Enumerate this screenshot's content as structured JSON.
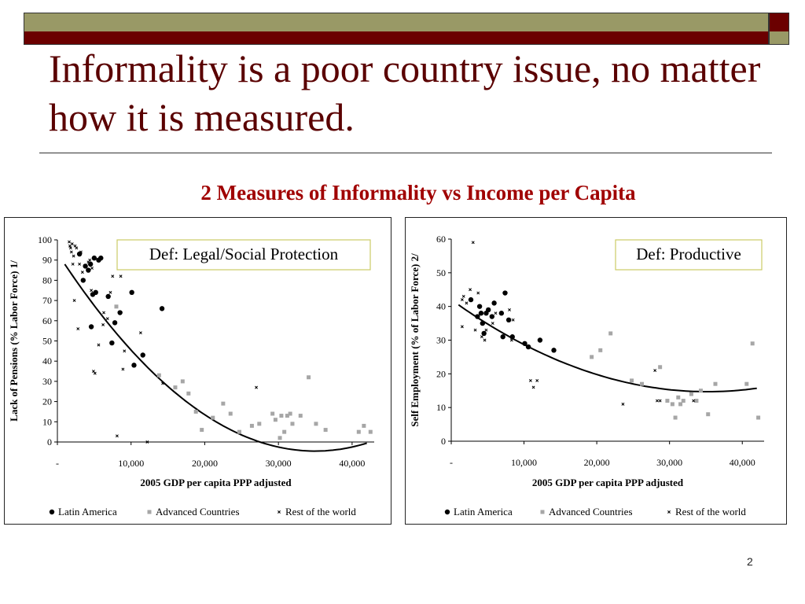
{
  "slide": {
    "title": "Informality is a poor country issue, no matter how it is measured.",
    "subtitle": "2 Measures of Informality vs Income per Capita",
    "page_number": "2"
  },
  "colors": {
    "band_olive": "#999966",
    "band_maroon": "#6b0000",
    "title": "#5a0000",
    "subtitle": "#a00000",
    "latin": "#000000",
    "advanced": "#a6a6a6",
    "rest": "#000000"
  },
  "chart_data": [
    {
      "type": "scatter",
      "definition": "Def: Legal/Social Protection",
      "ylabel": "Lack of Pensions (% Labor Force) 1/",
      "xlabel": "2005 GDP per capita PPP adjusted",
      "xlim": [
        0,
        43000
      ],
      "ylim": [
        0,
        100
      ],
      "xticks": [
        0,
        10000,
        20000,
        30000,
        40000
      ],
      "xtick_labels": [
        "-",
        "10,000",
        "20,000",
        "30,000",
        "40,000"
      ],
      "yticks": [
        0,
        10,
        20,
        30,
        40,
        50,
        60,
        70,
        80,
        90,
        100
      ],
      "ytick_labels": [
        "0",
        "10",
        "20",
        "30",
        "40",
        "50",
        "60",
        "70",
        "80",
        "90",
        "100"
      ],
      "legend": [
        "Latin America",
        "Advanced Countries",
        "Rest of the world"
      ],
      "legend_position": "bottom",
      "series": [
        {
          "name": "Latin America",
          "marker": "dot",
          "x": [
            3500,
            3800,
            4200,
            4500,
            4600,
            5000,
            5600,
            6900,
            7400,
            7800,
            8500,
            10100,
            10400,
            11600,
            14200,
            3000,
            4800,
            5200,
            5900
          ],
          "y": [
            80,
            87,
            85,
            88,
            57,
            91,
            90,
            72,
            49,
            59,
            64,
            74,
            38,
            43,
            66,
            93,
            73,
            74,
            91
          ]
        },
        {
          "name": "Advanced Countries",
          "marker": "square",
          "x": [
            8000,
            13800,
            16000,
            17800,
            18800,
            19600,
            21100,
            22500,
            24700,
            26400,
            27400,
            29200,
            29600,
            30400,
            30800,
            31200,
            31600,
            31900,
            33000,
            34100,
            35100,
            36400,
            40900,
            41600,
            42500
          ],
          "y": [
            67,
            33,
            27,
            24,
            15,
            6,
            12,
            19,
            5,
            8,
            9,
            14,
            11,
            13,
            5,
            13,
            14,
            9,
            13,
            32,
            9,
            6,
            5,
            8,
            5
          ],
          "x_more": [
            17000,
            23500,
            30200
          ],
          "y_more": [
            30,
            14,
            2
          ]
        },
        {
          "name": "Rest of the world",
          "marker": "x",
          "x": [
            1600,
            1700,
            1800,
            1900,
            2000,
            2100,
            2200,
            2400,
            2600,
            2800,
            3000,
            3200,
            3400,
            3600,
            4200,
            4400,
            4900,
            5100,
            5600,
            6200,
            6800,
            7200,
            7500,
            8100,
            8600,
            9100,
            11300,
            12200,
            14300,
            27000,
            4600,
            4700,
            6300,
            8900,
            2300
          ],
          "y": [
            99,
            97,
            96,
            94,
            98,
            88,
            92,
            97,
            96,
            56,
            88,
            94,
            84,
            80,
            89,
            90,
            35,
            34,
            48,
            58,
            61,
            74,
            82,
            3,
            82,
            45,
            54,
            0,
            29,
            27,
            75,
            86,
            64,
            36,
            70
          ]
        }
      ],
      "trendline": {
        "type": "polynomial",
        "coefficients": [
          93.5,
          -0.0056,
          8e-08
        ]
      }
    },
    {
      "type": "scatter",
      "definition": "Def: Productive",
      "ylabel": "Self Employment (% of Labor Force) 2/",
      "xlabel": "2005 GDP per capita PPP adjusted",
      "xlim": [
        0,
        43000
      ],
      "ylim": [
        0,
        60
      ],
      "xticks": [
        0,
        10000,
        20000,
        30000,
        40000
      ],
      "xtick_labels": [
        "-",
        "10,000",
        "20,000",
        "30,000",
        "40,000"
      ],
      "yticks": [
        0,
        10,
        20,
        30,
        40,
        50,
        60
      ],
      "ytick_labels": [
        "0",
        "10",
        "20",
        "30",
        "40",
        "50",
        "60"
      ],
      "legend": [
        "Latin America",
        "Advanced Countries",
        "Rest of the world"
      ],
      "legend_position": "bottom",
      "series": [
        {
          "name": "Latin America",
          "marker": "dot",
          "x": [
            2700,
            3900,
            4100,
            4300,
            4500,
            5100,
            5600,
            5900,
            6900,
            7100,
            7400,
            7900,
            8400,
            10100,
            10600,
            12200,
            14100,
            3600,
            4800
          ],
          "y": [
            42,
            40,
            38,
            35,
            32,
            39,
            37,
            41,
            38,
            31,
            44,
            36,
            31,
            29,
            28,
            30,
            27,
            37,
            38
          ]
        },
        {
          "name": "Advanced Countries",
          "marker": "square",
          "x": [
            19300,
            20500,
            21900,
            24800,
            26200,
            28700,
            29700,
            30400,
            30800,
            31200,
            31500,
            31900,
            33000,
            33700,
            34300,
            35300,
            36300,
            40600,
            41400,
            42200
          ],
          "y": [
            25,
            27,
            32,
            18,
            17,
            22,
            12,
            11,
            7,
            13,
            11,
            12,
            14,
            12,
            15,
            8,
            17,
            17,
            29,
            7
          ]
        },
        {
          "name": "Rest of the world",
          "marker": "x",
          "x": [
            1500,
            1700,
            2100,
            2600,
            3000,
            3300,
            3700,
            4200,
            4600,
            5700,
            8000,
            8300,
            8500,
            10900,
            11300,
            11800,
            23600,
            28000,
            28300,
            28700,
            33300,
            1500,
            4800,
            6100
          ],
          "y": [
            34,
            43,
            41,
            45,
            59,
            33,
            44,
            31,
            30,
            35,
            39,
            30,
            36,
            18,
            16,
            18,
            11,
            21,
            12,
            12,
            12,
            42,
            33,
            38
          ]
        }
      ],
      "trendline": {
        "type": "polynomial",
        "coefficients": [
          42.0,
          -0.00155,
          2.2e-08
        ]
      }
    }
  ]
}
